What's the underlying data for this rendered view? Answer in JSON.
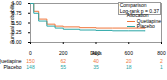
{
  "chart_data": {
    "type": "step",
    "annotation": [
      "Comparison",
      "Log-rank p = 0.37"
    ],
    "x_label": "Days",
    "y_label": "Survival probability",
    "legend_title": "Allocation",
    "legend": "right",
    "x": [
      0,
      20,
      50,
      100,
      150,
      200,
      300,
      400,
      500,
      600,
      700
    ],
    "series": [
      {
        "name": "Quetiapine",
        "color": "#f0763b",
        "values": [
          1,
          0.8,
          0.6,
          0.47,
          0.42,
          0.4,
          0.38,
          0.37,
          0.37,
          0.37,
          0.37
        ]
      },
      {
        "name": "Placebo",
        "color": "#2aa6a6",
        "values": [
          1,
          0.75,
          0.55,
          0.42,
          0.37,
          0.34,
          0.32,
          0.31,
          0.3,
          0.3,
          0.3
        ]
      }
    ],
    "xlim": [
      0,
      800
    ],
    "xticks": [
      0,
      200,
      400,
      600,
      800
    ],
    "ylim": [
      0,
      1
    ],
    "yticks": [
      {
        "value": 0,
        "label": "0.00"
      },
      {
        "value": 0.25,
        "label": "0.25"
      },
      {
        "value": 0.5,
        "label": "0.50"
      },
      {
        "value": 0.75,
        "label": "0.75"
      },
      {
        "value": 1,
        "label": "1.00"
      }
    ],
    "risk_table": {
      "times": [
        0,
        200,
        400,
        600,
        800
      ],
      "rows": [
        {
          "name": "Quetiapine",
          "values": [
            150,
            62,
            40,
            20,
            2
          ]
        },
        {
          "name": "Placebo",
          "values": [
            148,
            55,
            35,
            18,
            1
          ]
        }
      ]
    }
  }
}
